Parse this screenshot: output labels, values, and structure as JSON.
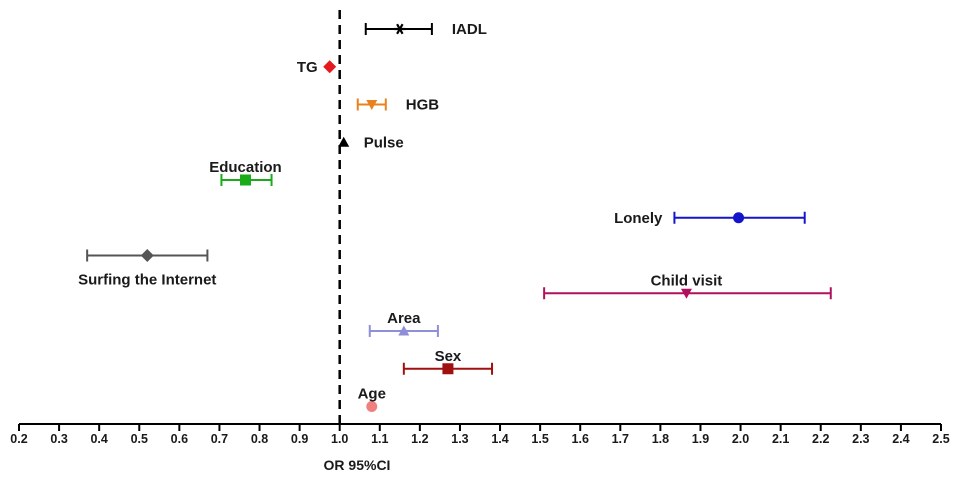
{
  "chart_data": {
    "type": "forest",
    "title": "",
    "xlabel": "OR 95%CI",
    "ylabel": "",
    "xlim": [
      0.2,
      2.5
    ],
    "xticks": [
      "0.2",
      "0.3",
      "0.4",
      "0.5",
      "0.6",
      "0.7",
      "0.8",
      "0.9",
      "1.0",
      "1.1",
      "1.2",
      "1.3",
      "1.4",
      "1.5",
      "1.6",
      "1.7",
      "1.8",
      "1.9",
      "2.0",
      "2.1",
      "2.2",
      "2.3",
      "2.4",
      "2.5"
    ],
    "reference_line": 1.0,
    "grid": false,
    "series": [
      {
        "name": "IADL",
        "or": 1.15,
        "lower": 1.065,
        "upper": 1.23,
        "color": "#000000",
        "marker": "asterisk",
        "label_side": "right"
      },
      {
        "name": "TG",
        "or": 0.975,
        "lower": 0.975,
        "upper": 0.975,
        "color": "#e41a1c",
        "marker": "diamond",
        "label_side": "left"
      },
      {
        "name": "HGB",
        "or": 1.08,
        "lower": 1.045,
        "upper": 1.115,
        "color": "#e8821e",
        "marker": "triangle-down",
        "label_side": "right"
      },
      {
        "name": "Pulse",
        "or": 1.01,
        "lower": 1.01,
        "upper": 1.01,
        "color": "#000000",
        "marker": "triangle-up",
        "label_side": "right"
      },
      {
        "name": "Education",
        "or": 0.765,
        "lower": 0.705,
        "upper": 0.83,
        "color": "#1aab1a",
        "marker": "square",
        "label_side": "above"
      },
      {
        "name": "Lonely",
        "or": 1.995,
        "lower": 1.835,
        "upper": 2.16,
        "color": "#1414cc",
        "marker": "circle",
        "label_side": "left"
      },
      {
        "name": "Surfing the Internet",
        "or": 0.52,
        "lower": 0.37,
        "upper": 0.67,
        "color": "#555555",
        "marker": "diamond",
        "label_side": "below"
      },
      {
        "name": "Child visit",
        "or": 1.865,
        "lower": 1.51,
        "upper": 2.225,
        "color": "#b0105e",
        "marker": "triangle-down",
        "label_side": "above"
      },
      {
        "name": "Area",
        "or": 1.16,
        "lower": 1.075,
        "upper": 1.245,
        "color": "#8f8fd9",
        "marker": "triangle-up",
        "label_side": "above"
      },
      {
        "name": "Sex",
        "or": 1.27,
        "lower": 1.16,
        "upper": 1.38,
        "color": "#a01010",
        "marker": "square",
        "label_side": "above"
      },
      {
        "name": "Age",
        "or": 1.08,
        "lower": 1.08,
        "upper": 1.08,
        "color": "#f08080",
        "marker": "circle",
        "label_side": "above"
      }
    ]
  }
}
